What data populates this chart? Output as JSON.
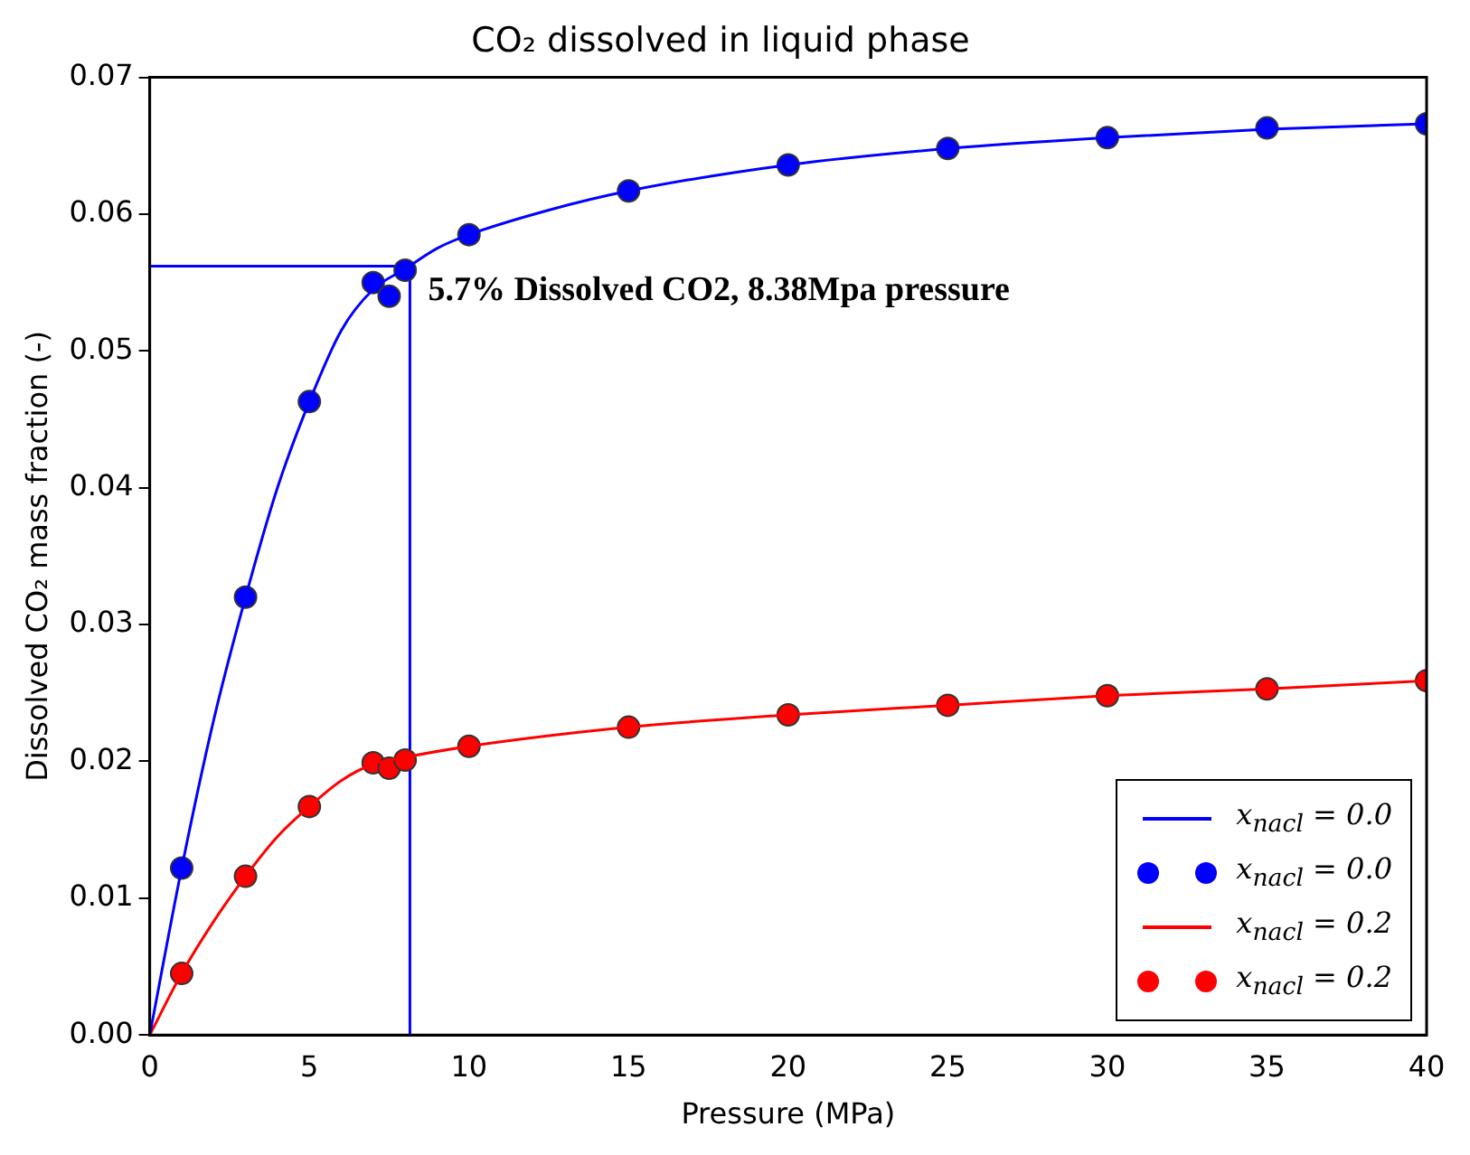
{
  "chart_data": {
    "type": "line",
    "title": "CO₂ dissolved in liquid phase",
    "xlabel": "Pressure (MPa)",
    "ylabel": "Dissolved CO₂ mass fraction (-)",
    "xlim": [
      0,
      40
    ],
    "xticks": [
      0,
      5,
      10,
      15,
      20,
      25,
      30,
      35,
      40
    ],
    "ylim": [
      0,
      0.07
    ],
    "yticks": [
      {
        "value": 0,
        "label": "0.00"
      },
      {
        "value": 0.01,
        "label": "0.01"
      },
      {
        "value": 0.02,
        "label": "0.02"
      },
      {
        "value": 0.03,
        "label": "0.03"
      },
      {
        "value": 0.04,
        "label": "0.04"
      },
      {
        "value": 0.05,
        "label": "0.05"
      },
      {
        "value": 0.06,
        "label": "0.06"
      },
      {
        "value": 0.07,
        "label": "0.07"
      }
    ],
    "grid": false,
    "legend": "bottom right",
    "series": [
      {
        "name": "x$_{nacl}$ = 0.0",
        "marker": "none",
        "color": "#0000ff",
        "x": [
          0,
          1,
          2,
          3,
          4,
          5,
          6,
          7,
          8,
          9,
          10,
          12.5,
          15,
          20,
          25,
          30,
          35,
          40
        ],
        "values": [
          0,
          0.0122,
          0.023,
          0.032,
          0.04,
          0.0463,
          0.0515,
          0.0545,
          0.056,
          0.0575,
          0.0585,
          0.0603,
          0.0617,
          0.0636,
          0.0648,
          0.0656,
          0.0662,
          0.0666
        ]
      },
      {
        "name": "x$_{nacl}$ = 0.0",
        "type": "scatter",
        "marker": "circle",
        "color": "#0000ff",
        "x": [
          1,
          3,
          5,
          7,
          7.5,
          8,
          10,
          15,
          20,
          25,
          30,
          35,
          40
        ],
        "values": [
          0.0122,
          0.032,
          0.0463,
          0.055,
          0.054,
          0.0559,
          0.0585,
          0.0617,
          0.0636,
          0.0648,
          0.0656,
          0.0663,
          0.0666
        ]
      },
      {
        "name": "x$_{nacl}$ = 0.2",
        "marker": "none",
        "color": "#ff0000",
        "x": [
          0,
          1,
          2,
          3,
          4,
          5,
          6,
          7,
          8,
          10,
          15,
          20,
          25,
          30,
          35,
          40
        ],
        "values": [
          0,
          0.0045,
          0.0083,
          0.0116,
          0.0145,
          0.0167,
          0.0186,
          0.0198,
          0.0203,
          0.0211,
          0.0225,
          0.0234,
          0.0241,
          0.0248,
          0.0253,
          0.0259
        ]
      },
      {
        "name": "x$_{nacl}$ = 0.2",
        "type": "scatter",
        "marker": "circle",
        "color": "#ff0000",
        "x": [
          1,
          3,
          5,
          7,
          7.5,
          8,
          10,
          15,
          20,
          25,
          30,
          35,
          40
        ],
        "values": [
          0.0045,
          0.0116,
          0.0167,
          0.0199,
          0.0195,
          0.0201,
          0.0211,
          0.0225,
          0.0234,
          0.0241,
          0.0248,
          0.0253,
          0.0259
        ]
      },
      {
        "marker": "none",
        "color": "#0000ff",
        "x": [
          0,
          8.15,
          8.15
        ],
        "values": [
          0.0562,
          0.0562,
          0
        ]
      }
    ],
    "annotations": [
      {
        "text": "5.7% Dissolved CO2, 8.38Mpa pressure",
        "x": 8.15,
        "y": 0.0562
      }
    ]
  }
}
